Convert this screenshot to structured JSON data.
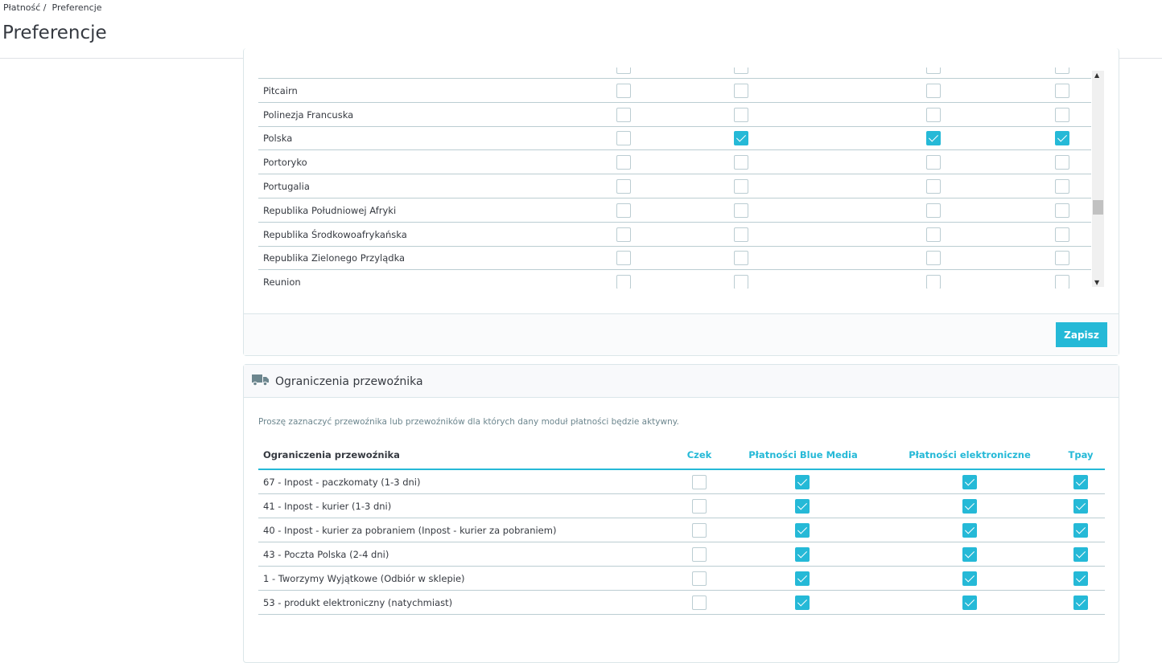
{
  "breadcrumb": [
    "Płatność",
    "Preferencje"
  ],
  "page_title": "Preferencje",
  "colors": {
    "accent": "#25b9d7"
  },
  "countries": [
    {
      "name": "",
      "checks": [
        false,
        false,
        false,
        false
      ]
    },
    {
      "name": "Pitcairn",
      "checks": [
        false,
        false,
        false,
        false
      ]
    },
    {
      "name": "Polinezja Francuska",
      "checks": [
        false,
        false,
        false,
        false
      ]
    },
    {
      "name": "Polska",
      "checks": [
        false,
        true,
        true,
        true
      ]
    },
    {
      "name": "Portoryko",
      "checks": [
        false,
        false,
        false,
        false
      ]
    },
    {
      "name": "Portugalia",
      "checks": [
        false,
        false,
        false,
        false
      ]
    },
    {
      "name": "Republika Południowej Afryki",
      "checks": [
        false,
        false,
        false,
        false
      ]
    },
    {
      "name": "Republika Środkowoafrykańska",
      "checks": [
        false,
        false,
        false,
        false
      ]
    },
    {
      "name": "Republika Zielonego Przylądka",
      "checks": [
        false,
        false,
        false,
        false
      ]
    },
    {
      "name": "Reunion",
      "checks": [
        false,
        false,
        false,
        false
      ]
    }
  ],
  "save_label": "Zapisz",
  "carrier": {
    "title": "Ograniczenia przewoźnika",
    "icon": "truck-icon",
    "description": "Proszę zaznaczyć przewoźnika lub przewoźników dla których dany moduł płatności będzie aktywny.",
    "headers": [
      "Ograniczenia przewoźnika",
      "Czek",
      "Płatności Blue Media",
      "Płatności elektroniczne",
      "Tpay"
    ],
    "rows": [
      {
        "name": "67 - Inpost - paczkomaty (1-3 dni)",
        "checks": [
          false,
          true,
          true,
          true
        ]
      },
      {
        "name": "41 - Inpost - kurier (1-3 dni)",
        "checks": [
          false,
          true,
          true,
          true
        ]
      },
      {
        "name": "40 - Inpost - kurier za pobraniem (Inpost - kurier za pobraniem)",
        "checks": [
          false,
          true,
          true,
          true
        ]
      },
      {
        "name": "43 - Poczta Polska (2-4 dni)",
        "checks": [
          false,
          true,
          true,
          true
        ]
      },
      {
        "name": "1 - Tworzymy Wyjątkowe (Odbiór w sklepie)",
        "checks": [
          false,
          true,
          true,
          true
        ]
      },
      {
        "name": "53 - produkt elektroniczny (natychmiast)",
        "checks": [
          false,
          true,
          true,
          true
        ]
      }
    ]
  }
}
